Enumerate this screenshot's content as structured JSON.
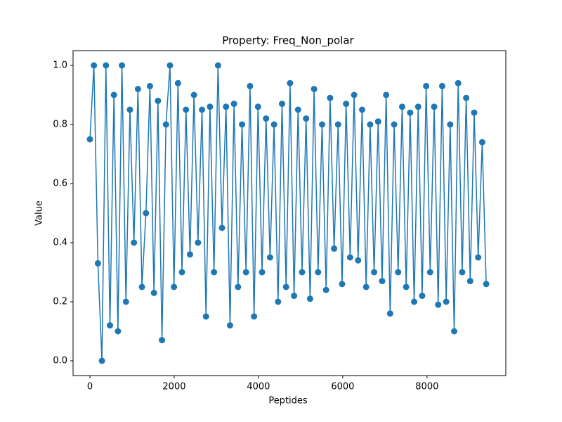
{
  "chart_data": {
    "type": "line",
    "title": "Property: Freq_Non_polar",
    "xlabel": "Peptides",
    "ylabel": "Value",
    "x": [
      0,
      95,
      190,
      285,
      380,
      475,
      570,
      665,
      760,
      855,
      950,
      1045,
      1140,
      1235,
      1330,
      1425,
      1520,
      1615,
      1710,
      1805,
      1900,
      1995,
      2090,
      2185,
      2280,
      2375,
      2470,
      2565,
      2660,
      2755,
      2850,
      2945,
      3040,
      3135,
      3230,
      3325,
      3420,
      3515,
      3610,
      3705,
      3800,
      3895,
      3990,
      4085,
      4180,
      4275,
      4370,
      4465,
      4560,
      4655,
      4750,
      4845,
      4940,
      5035,
      5130,
      5225,
      5320,
      5415,
      5510,
      5605,
      5700,
      5795,
      5890,
      5985,
      6080,
      6175,
      6270,
      6365,
      6460,
      6555,
      6650,
      6745,
      6840,
      6935,
      7030,
      7125,
      7220,
      7315,
      7410,
      7505,
      7600,
      7695,
      7790,
      7885,
      7980,
      8075,
      8170,
      8265,
      8360,
      8455,
      8550,
      8645,
      8740,
      8835,
      8930,
      9025,
      9120,
      9215,
      9310,
      9405
    ],
    "series": [
      {
        "color": "#1f77b4",
        "values": [
          0.75,
          1.0,
          0.33,
          0.0,
          1.0,
          0.12,
          0.9,
          0.1,
          1.0,
          0.2,
          0.85,
          0.4,
          0.92,
          0.25,
          0.5,
          0.93,
          0.23,
          0.88,
          0.07,
          0.8,
          1.0,
          0.25,
          0.94,
          0.3,
          0.85,
          0.36,
          0.9,
          0.4,
          0.85,
          0.15,
          0.86,
          0.3,
          1.0,
          0.45,
          0.86,
          0.12,
          0.87,
          0.25,
          0.8,
          0.3,
          0.93,
          0.15,
          0.86,
          0.3,
          0.82,
          0.35,
          0.8,
          0.2,
          0.87,
          0.25,
          0.94,
          0.22,
          0.85,
          0.3,
          0.82,
          0.21,
          0.92,
          0.3,
          0.8,
          0.24,
          0.89,
          0.38,
          0.8,
          0.26,
          0.87,
          0.35,
          0.9,
          0.34,
          0.85,
          0.25,
          0.8,
          0.3,
          0.81,
          0.27,
          0.9,
          0.16,
          0.8,
          0.3,
          0.86,
          0.25,
          0.84,
          0.2,
          0.86,
          0.22,
          0.93,
          0.3,
          0.86,
          0.19,
          0.93,
          0.2,
          0.8,
          0.1,
          0.94,
          0.3,
          0.89,
          0.27,
          0.84,
          0.35,
          0.74,
          0.26
        ]
      }
    ],
    "xlim": [
      -400,
      9870
    ],
    "ylim": [
      -0.05,
      1.05
    ],
    "xticks": [
      0,
      2000,
      4000,
      6000,
      8000
    ],
    "yticks": [
      {
        "value": 0,
        "label": "0.0"
      },
      {
        "value": 0.2,
        "label": "0.2"
      },
      {
        "value": 0.4,
        "label": "0.4"
      },
      {
        "value": 0.6,
        "label": "0.6"
      },
      {
        "value": 0.8,
        "label": "0.8"
      },
      {
        "value": 1,
        "label": "1.0"
      }
    ]
  }
}
